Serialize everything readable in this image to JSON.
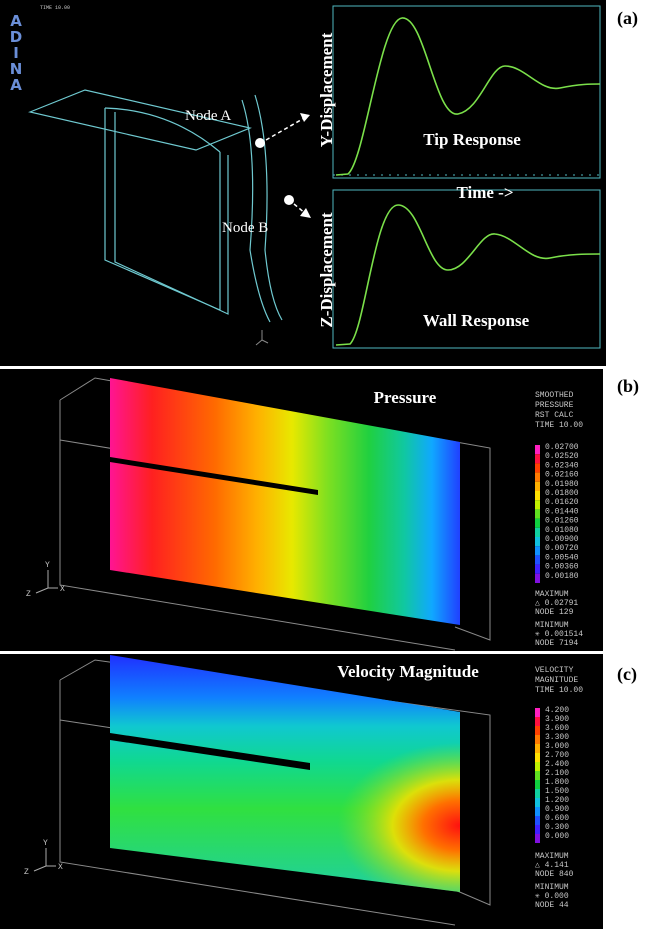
{
  "panel_a": {
    "label": "(a)",
    "logo": "ADINA",
    "time": "TIME 10.00",
    "node_a": "Node A",
    "node_b": "Node B",
    "y_axis_top": "Y-Displacement",
    "title_top": "Tip Response",
    "x_axis": "Time ->",
    "y_axis_bottom": "Z-Displacement",
    "title_bottom": "Wall Response"
  },
  "panel_b": {
    "label": "(b)",
    "title": "Pressure",
    "legend_title": [
      "SMOOTHED",
      "PRESSURE",
      "RST CALC",
      "TIME 10.00"
    ],
    "legend_values": [
      "0.02700",
      "0.02520",
      "0.02340",
      "0.02160",
      "0.01980",
      "0.01800",
      "0.01620",
      "0.01440",
      "0.01260",
      "0.01080",
      "0.00900",
      "0.00720",
      "0.00540",
      "0.00360",
      "0.00180"
    ],
    "extremes": [
      "MAXIMUM",
      "△ 0.02791",
      "NODE 129",
      "MINIMUM",
      "✳ 0.001514",
      "NODE 7194"
    ],
    "triad": [
      "Y",
      "Z",
      "X"
    ]
  },
  "panel_c": {
    "label": "(c)",
    "title": "Velocity Magnitude",
    "legend_title": [
      "VELOCITY",
      "MAGNITUDE",
      "TIME 10.00"
    ],
    "legend_values": [
      "4.200",
      "3.900",
      "3.600",
      "3.300",
      "3.000",
      "2.700",
      "2.400",
      "2.100",
      "1.800",
      "1.500",
      "1.200",
      "0.900",
      "0.600",
      "0.300",
      "0.000"
    ],
    "extremes": [
      "MAXIMUM",
      "△ 4.141",
      "NODE 840",
      "MINIMUM",
      "✳ 0.000",
      "NODE 44"
    ],
    "triad": [
      "Y",
      "Z",
      "X"
    ]
  }
}
